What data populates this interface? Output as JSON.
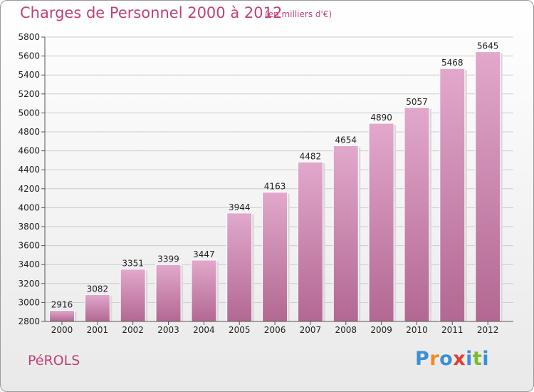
{
  "header": {
    "title": "Charges de Personnel 2000 à 2012",
    "subtitle": "(en milliers d'€)"
  },
  "footer": {
    "place": "PéROLS",
    "logo_text": "Proxiti",
    "logo_colors": [
      "#3a8fd6",
      "#f08a1c",
      "#3a8fd6",
      "#e43c2f",
      "#3a8fd6",
      "#7cbc2a",
      "#3a8fd6"
    ]
  },
  "colors": {
    "bar_top": "#e2a8cc",
    "bar_bottom": "#b26892",
    "text": "#c0407a",
    "grid": "#cccccc"
  },
  "chart_data": {
    "type": "bar",
    "title": "Charges de Personnel 2000 à 2012",
    "subtitle": "(en milliers d'€)",
    "xlabel": "",
    "ylabel": "",
    "categories": [
      "2000",
      "2001",
      "2002",
      "2003",
      "2004",
      "2005",
      "2006",
      "2007",
      "2008",
      "2009",
      "2010",
      "2011",
      "2012"
    ],
    "values": [
      2916,
      3082,
      3351,
      3399,
      3447,
      3944,
      4163,
      4482,
      4654,
      4890,
      5057,
      5468,
      5645
    ],
    "ylim": [
      2800,
      5800
    ],
    "yticks": [
      2800,
      3000,
      3200,
      3400,
      3600,
      3800,
      4000,
      4200,
      4400,
      4600,
      4800,
      5000,
      5200,
      5400,
      5600,
      5800
    ],
    "grid": true
  }
}
